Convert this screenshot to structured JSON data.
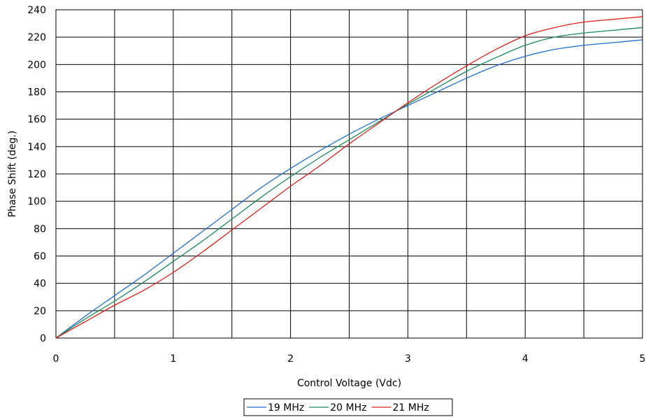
{
  "chart_data": {
    "type": "line",
    "title": "",
    "xlabel": "Control Voltage (Vdc)",
    "ylabel": "Phase Shift (deg.)",
    "xlim": [
      0,
      5
    ],
    "ylim": [
      0,
      240
    ],
    "xticks": [
      0,
      1,
      2,
      3,
      4,
      5
    ],
    "yticks": [
      0,
      20,
      40,
      60,
      80,
      100,
      120,
      140,
      160,
      180,
      200,
      220,
      240
    ],
    "grid": true,
    "legend_position": "bottom",
    "series": [
      {
        "name": "19 MHz",
        "color": "#1f6fd1",
        "x": [
          0,
          0.25,
          0.5,
          0.75,
          1,
          1.25,
          1.5,
          1.75,
          2,
          2.25,
          2.5,
          2.75,
          3,
          3.25,
          3.5,
          3.75,
          4,
          4.25,
          4.5,
          4.75,
          5
        ],
        "y": [
          0,
          16,
          31,
          46,
          62,
          78,
          94,
          110,
          124,
          137,
          149,
          160,
          170,
          180,
          190,
          199,
          206,
          211,
          214,
          216,
          218
        ]
      },
      {
        "name": "20 MHz",
        "color": "#1a8a5a",
        "x": [
          0,
          0.25,
          0.5,
          0.75,
          1,
          1.25,
          1.5,
          1.75,
          2,
          2.25,
          2.5,
          2.75,
          3,
          3.25,
          3.5,
          3.75,
          4,
          4.25,
          4.5,
          4.75,
          5
        ],
        "y": [
          0,
          14,
          27,
          41,
          56,
          71,
          87,
          103,
          118,
          132,
          145,
          158,
          171,
          183,
          195,
          205,
          214,
          220,
          223,
          225,
          227
        ]
      },
      {
        "name": "21 MHz",
        "color": "#e0201b",
        "x": [
          0,
          0.25,
          0.5,
          0.75,
          1,
          1.25,
          1.5,
          1.75,
          2,
          2.25,
          2.5,
          2.75,
          3,
          3.25,
          3.5,
          3.75,
          4,
          4.25,
          4.5,
          4.75,
          5
        ],
        "y": [
          0,
          12,
          24,
          35,
          48,
          63,
          79,
          95,
          111,
          126,
          142,
          157,
          172,
          186,
          199,
          211,
          221,
          227,
          231,
          233,
          235
        ]
      }
    ]
  }
}
